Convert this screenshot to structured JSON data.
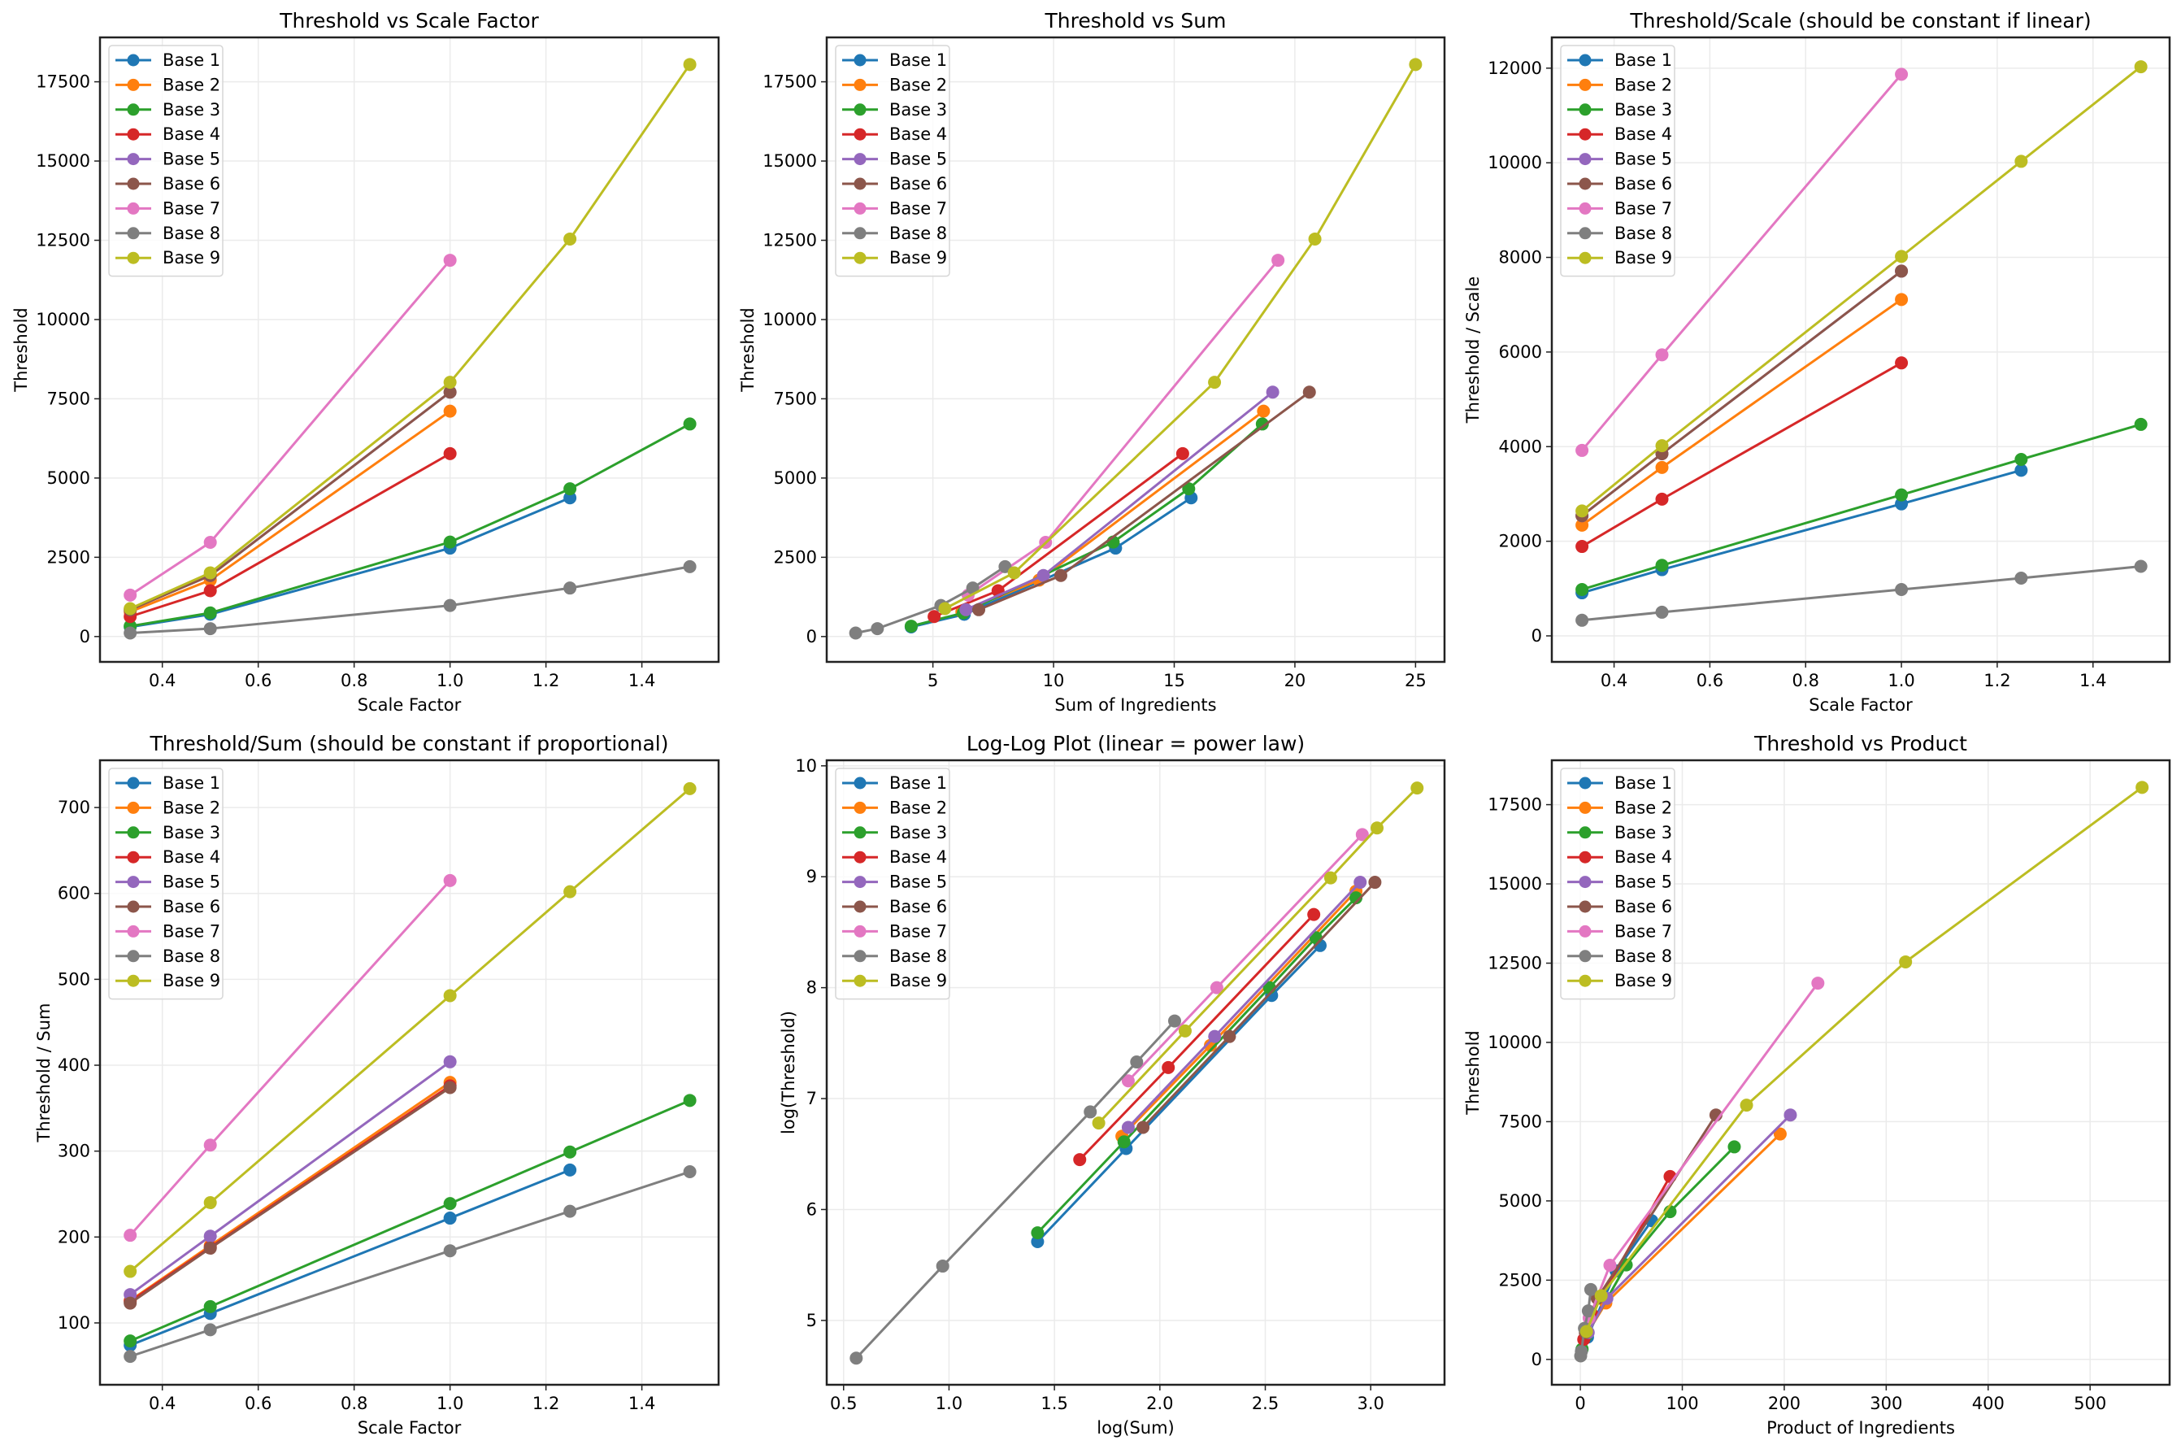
{
  "figure": {
    "layout": "2x3 grid"
  },
  "series_meta": [
    {
      "name": "Base 1",
      "color": "#1f77b4"
    },
    {
      "name": "Base 2",
      "color": "#ff7f0e"
    },
    {
      "name": "Base 3",
      "color": "#2ca02c"
    },
    {
      "name": "Base 4",
      "color": "#d62728"
    },
    {
      "name": "Base 5",
      "color": "#9467bd"
    },
    {
      "name": "Base 6",
      "color": "#8c564b"
    },
    {
      "name": "Base 7",
      "color": "#e377c2"
    },
    {
      "name": "Base 8",
      "color": "#7f7f7f"
    },
    {
      "name": "Base 9",
      "color": "#bcbd22"
    }
  ],
  "chart_data": [
    {
      "id": "threshold-vs-scale",
      "type": "line",
      "title": "Threshold vs Scale Factor",
      "xlabel": "Scale Factor",
      "ylabel": "Threshold",
      "xlim": [
        0.27,
        1.56
      ],
      "ylim": [
        -800,
        18900
      ],
      "xticks": [
        0.4,
        0.6,
        0.8,
        1.0,
        1.2,
        1.4
      ],
      "xtick_labels": [
        "0.4",
        "0.6",
        "0.8",
        "1.0",
        "1.2",
        "1.4"
      ],
      "yticks": [
        0,
        2500,
        5000,
        7500,
        10000,
        12500,
        15000,
        17500
      ],
      "ytick_labels": [
        "0",
        "2500",
        "5000",
        "7500",
        "10000",
        "12500",
        "15000",
        "17500"
      ],
      "grid": true,
      "legend": "upper-left",
      "series": [
        {
          "name": "Base 1",
          "x": [
            0.333,
            0.5,
            1.0,
            1.25
          ],
          "y": [
            303,
            700,
            2790,
            4375
          ]
        },
        {
          "name": "Base 2",
          "x": [
            0.333,
            0.5,
            1.0
          ],
          "y": [
            780,
            1780,
            7110
          ]
        },
        {
          "name": "Base 3",
          "x": [
            0.333,
            0.5,
            1.0,
            1.25,
            1.5
          ],
          "y": [
            327,
            745,
            2980,
            4660,
            6705
          ]
        },
        {
          "name": "Base 4",
          "x": [
            0.333,
            0.5,
            1.0
          ],
          "y": [
            630,
            1445,
            5770
          ]
        },
        {
          "name": "Base 5",
          "x": [
            0.333,
            0.5,
            1.0
          ],
          "y": [
            847,
            1925,
            7710
          ]
        },
        {
          "name": "Base 6",
          "x": [
            0.333,
            0.5,
            1.0
          ],
          "y": [
            847,
            1925,
            7710
          ]
        },
        {
          "name": "Base 7",
          "x": [
            0.333,
            0.5,
            1.0
          ],
          "y": [
            1307,
            2970,
            11870
          ]
        },
        {
          "name": "Base 8",
          "x": [
            0.333,
            0.5,
            1.0,
            1.25,
            1.5
          ],
          "y": [
            110,
            250,
            980,
            1530,
            2205
          ]
        },
        {
          "name": "Base 9",
          "x": [
            0.333,
            0.5,
            1.0,
            1.25,
            1.5
          ],
          "y": [
            880,
            2010,
            8020,
            12540,
            18045
          ]
        }
      ]
    },
    {
      "id": "threshold-vs-sum",
      "type": "line",
      "title": "Threshold vs Sum",
      "xlabel": "Sum of Ingredients",
      "ylabel": "Threshold",
      "xlim": [
        0.6,
        26.2
      ],
      "ylim": [
        -800,
        18900
      ],
      "xticks": [
        5,
        10,
        15,
        20,
        25
      ],
      "xtick_labels": [
        "5",
        "10",
        "15",
        "20",
        "25"
      ],
      "yticks": [
        0,
        2500,
        5000,
        7500,
        10000,
        12500,
        15000,
        17500
      ],
      "ytick_labels": [
        "0",
        "2500",
        "5000",
        "7500",
        "10000",
        "12500",
        "15000",
        "17500"
      ],
      "grid": true,
      "legend": "upper-left",
      "series": [
        {
          "name": "Base 1",
          "x": [
            4.1,
            6.3,
            12.57,
            15.7
          ],
          "y": [
            303,
            700,
            2790,
            4375
          ]
        },
        {
          "name": "Base 2",
          "x": [
            6.2,
            9.4,
            18.7
          ],
          "y": [
            780,
            1780,
            7110
          ]
        },
        {
          "name": "Base 3",
          "x": [
            4.1,
            6.26,
            12.47,
            15.6,
            18.65
          ],
          "y": [
            327,
            745,
            2980,
            4660,
            6705
          ]
        },
        {
          "name": "Base 4",
          "x": [
            5.05,
            7.7,
            15.35
          ],
          "y": [
            630,
            1445,
            5770
          ]
        },
        {
          "name": "Base 5",
          "x": [
            6.37,
            9.58,
            19.08
          ],
          "y": [
            847,
            1925,
            7710
          ]
        },
        {
          "name": "Base 6",
          "x": [
            6.9,
            10.3,
            20.6
          ],
          "y": [
            847,
            1925,
            7710
          ]
        },
        {
          "name": "Base 7",
          "x": [
            6.46,
            9.67,
            19.3
          ],
          "y": [
            1307,
            2970,
            11870
          ]
        },
        {
          "name": "Base 8",
          "x": [
            1.8,
            2.7,
            5.33,
            6.65,
            7.99
          ],
          "y": [
            110,
            250,
            980,
            1530,
            2205
          ]
        },
        {
          "name": "Base 9",
          "x": [
            5.5,
            8.37,
            16.67,
            20.83,
            25.0
          ],
          "y": [
            880,
            2010,
            8020,
            12540,
            18045
          ]
        }
      ]
    },
    {
      "id": "threshold-per-scale",
      "type": "line",
      "title": "Threshold/Scale (should be constant if linear)",
      "xlabel": "Scale Factor",
      "ylabel": "Threshold / Scale",
      "xlim": [
        0.27,
        1.56
      ],
      "ylim": [
        -550,
        12650
      ],
      "xticks": [
        0.4,
        0.6,
        0.8,
        1.0,
        1.2,
        1.4
      ],
      "xtick_labels": [
        "0.4",
        "0.6",
        "0.8",
        "1.0",
        "1.2",
        "1.4"
      ],
      "yticks": [
        0,
        2000,
        4000,
        6000,
        8000,
        10000,
        12000
      ],
      "ytick_labels": [
        "0",
        "2000",
        "4000",
        "6000",
        "8000",
        "10000",
        "12000"
      ],
      "grid": true,
      "legend": "upper-left",
      "series": [
        {
          "name": "Base 1",
          "x": [
            0.333,
            0.5,
            1.0,
            1.25
          ],
          "y": [
            910,
            1400,
            2790,
            3500
          ]
        },
        {
          "name": "Base 2",
          "x": [
            0.333,
            0.5,
            1.0
          ],
          "y": [
            2340,
            3560,
            7110
          ]
        },
        {
          "name": "Base 3",
          "x": [
            0.333,
            0.5,
            1.0,
            1.25,
            1.5
          ],
          "y": [
            980,
            1490,
            2980,
            3730,
            4470
          ]
        },
        {
          "name": "Base 4",
          "x": [
            0.333,
            0.5,
            1.0
          ],
          "y": [
            1890,
            2890,
            5770
          ]
        },
        {
          "name": "Base 5",
          "x": [
            0.333,
            0.5,
            1.0
          ],
          "y": [
            2540,
            3850,
            7710
          ]
        },
        {
          "name": "Base 6",
          "x": [
            0.333,
            0.5,
            1.0
          ],
          "y": [
            2540,
            3850,
            7710
          ]
        },
        {
          "name": "Base 7",
          "x": [
            0.333,
            0.5,
            1.0
          ],
          "y": [
            3920,
            5940,
            11870
          ]
        },
        {
          "name": "Base 8",
          "x": [
            0.333,
            0.5,
            1.0,
            1.25,
            1.5
          ],
          "y": [
            330,
            500,
            980,
            1220,
            1470
          ]
        },
        {
          "name": "Base 9",
          "x": [
            0.333,
            0.5,
            1.0,
            1.25,
            1.5
          ],
          "y": [
            2640,
            4020,
            8020,
            10030,
            12030
          ]
        }
      ]
    },
    {
      "id": "threshold-per-sum",
      "type": "line",
      "title": "Threshold/Sum (should be constant if proportional)",
      "xlabel": "Scale Factor",
      "ylabel": "Threshold / Sum",
      "xlim": [
        0.27,
        1.56
      ],
      "ylim": [
        28,
        755
      ],
      "xticks": [
        0.4,
        0.6,
        0.8,
        1.0,
        1.2,
        1.4
      ],
      "xtick_labels": [
        "0.4",
        "0.6",
        "0.8",
        "1.0",
        "1.2",
        "1.4"
      ],
      "yticks": [
        100,
        200,
        300,
        400,
        500,
        600,
        700
      ],
      "ytick_labels": [
        "100",
        "200",
        "300",
        "400",
        "500",
        "600",
        "700"
      ],
      "grid": true,
      "legend": "upper-left",
      "series": [
        {
          "name": "Base 1",
          "x": [
            0.333,
            0.5,
            1.0,
            1.25
          ],
          "y": [
            74,
            111,
            222,
            278
          ]
        },
        {
          "name": "Base 2",
          "x": [
            0.333,
            0.5,
            1.0
          ],
          "y": [
            126,
            190,
            380
          ]
        },
        {
          "name": "Base 3",
          "x": [
            0.333,
            0.5,
            1.0,
            1.25,
            1.5
          ],
          "y": [
            79,
            119,
            239,
            299,
            359
          ]
        },
        {
          "name": "Base 4",
          "x": [
            0.333,
            0.5,
            1.0
          ],
          "y": [
            125,
            188,
            376
          ]
        },
        {
          "name": "Base 5",
          "x": [
            0.333,
            0.5,
            1.0
          ],
          "y": [
            133,
            201,
            404
          ]
        },
        {
          "name": "Base 6",
          "x": [
            0.333,
            0.5,
            1.0
          ],
          "y": [
            123,
            187,
            374
          ]
        },
        {
          "name": "Base 7",
          "x": [
            0.333,
            0.5,
            1.0
          ],
          "y": [
            202,
            307,
            615
          ]
        },
        {
          "name": "Base 8",
          "x": [
            0.333,
            0.5,
            1.0,
            1.25,
            1.5
          ],
          "y": [
            61,
            92,
            184,
            230,
            276
          ]
        },
        {
          "name": "Base 9",
          "x": [
            0.333,
            0.5,
            1.0,
            1.25,
            1.5
          ],
          "y": [
            160,
            240,
            481,
            602,
            722
          ]
        }
      ]
    },
    {
      "id": "log-log",
      "type": "line",
      "title": "Log-Log Plot (linear = power law)",
      "xlabel": "log(Sum)",
      "ylabel": "log(Threshold)",
      "xlim": [
        0.42,
        3.35
      ],
      "ylim": [
        4.42,
        10.05
      ],
      "xticks": [
        0.5,
        1.0,
        1.5,
        2.0,
        2.5,
        3.0
      ],
      "xtick_labels": [
        "0.5",
        "1.0",
        "1.5",
        "2.0",
        "2.5",
        "3.0"
      ],
      "yticks": [
        5,
        6,
        7,
        8,
        9,
        10
      ],
      "ytick_labels": [
        "5",
        "6",
        "7",
        "8",
        "9",
        "10"
      ],
      "grid": true,
      "legend": "upper-left",
      "series": [
        {
          "name": "Base 1",
          "x": [
            1.42,
            1.84,
            2.53,
            2.76
          ],
          "y": [
            5.71,
            6.55,
            7.93,
            8.38
          ]
        },
        {
          "name": "Base 2",
          "x": [
            1.82,
            2.24,
            2.93
          ],
          "y": [
            6.66,
            7.48,
            8.87
          ]
        },
        {
          "name": "Base 3",
          "x": [
            1.42,
            1.83,
            2.52,
            2.74,
            2.93
          ],
          "y": [
            5.79,
            6.61,
            8.0,
            8.45,
            8.81
          ]
        },
        {
          "name": "Base 4",
          "x": [
            1.62,
            2.04,
            2.73
          ],
          "y": [
            6.45,
            7.28,
            8.66
          ]
        },
        {
          "name": "Base 5",
          "x": [
            1.85,
            2.26,
            2.95
          ],
          "y": [
            6.74,
            7.56,
            8.95
          ]
        },
        {
          "name": "Base 6",
          "x": [
            1.92,
            2.33,
            3.02
          ],
          "y": [
            6.74,
            7.56,
            8.95
          ]
        },
        {
          "name": "Base 7",
          "x": [
            1.85,
            2.27,
            2.96
          ],
          "y": [
            7.16,
            8.0,
            9.38
          ]
        },
        {
          "name": "Base 8",
          "x": [
            0.56,
            0.97,
            1.67,
            1.89,
            2.07
          ],
          "y": [
            4.66,
            5.49,
            6.88,
            7.33,
            7.7
          ]
        },
        {
          "name": "Base 9",
          "x": [
            1.71,
            2.12,
            2.81,
            3.03,
            3.22
          ],
          "y": [
            6.78,
            7.61,
            8.99,
            9.44,
            9.8
          ]
        }
      ]
    },
    {
      "id": "threshold-vs-product",
      "type": "line",
      "title": "Threshold vs Product",
      "xlabel": "Product of Ingredients",
      "ylabel": "Threshold",
      "xlim": [
        -28,
        578
      ],
      "ylim": [
        -800,
        18900
      ],
      "xticks": [
        0,
        100,
        200,
        300,
        400,
        500
      ],
      "xtick_labels": [
        "0",
        "100",
        "200",
        "300",
        "400",
        "500"
      ],
      "yticks": [
        0,
        2500,
        5000,
        7500,
        10000,
        12500,
        15000,
        17500
      ],
      "ytick_labels": [
        "0",
        "2500",
        "5000",
        "7500",
        "10000",
        "12500",
        "15000",
        "17500"
      ],
      "grid": true,
      "legend": "upper-left",
      "series": [
        {
          "name": "Base 1",
          "x": [
            1.4,
            7,
            35,
            70
          ],
          "y": [
            303,
            700,
            2790,
            4375
          ]
        },
        {
          "name": "Base 2",
          "x": [
            6,
            25,
            196
          ],
          "y": [
            780,
            1780,
            7110
          ]
        },
        {
          "name": "Base 3",
          "x": [
            1.7,
            5.6,
            45,
            88,
            151
          ],
          "y": [
            327,
            745,
            2980,
            4660,
            6705
          ]
        },
        {
          "name": "Base 4",
          "x": [
            3.3,
            11,
            88
          ],
          "y": [
            630,
            1445,
            5770
          ]
        },
        {
          "name": "Base 5",
          "x": [
            7.7,
            26,
            206
          ],
          "y": [
            847,
            1925,
            7710
          ]
        },
        {
          "name": "Base 6",
          "x": [
            4.9,
            16.6,
            133
          ],
          "y": [
            847,
            1925,
            7710
          ]
        },
        {
          "name": "Base 7",
          "x": [
            8.6,
            29,
            233
          ],
          "y": [
            1307,
            2970,
            11870
          ]
        },
        {
          "name": "Base 8",
          "x": [
            0.3,
            1.0,
            4.0,
            7.8,
            10.2
          ],
          "y": [
            110,
            250,
            980,
            1530,
            2205
          ]
        },
        {
          "name": "Base 9",
          "x": [
            6.0,
            20.4,
            163,
            319,
            551
          ],
          "y": [
            880,
            2010,
            8020,
            12540,
            18045
          ]
        }
      ]
    }
  ]
}
